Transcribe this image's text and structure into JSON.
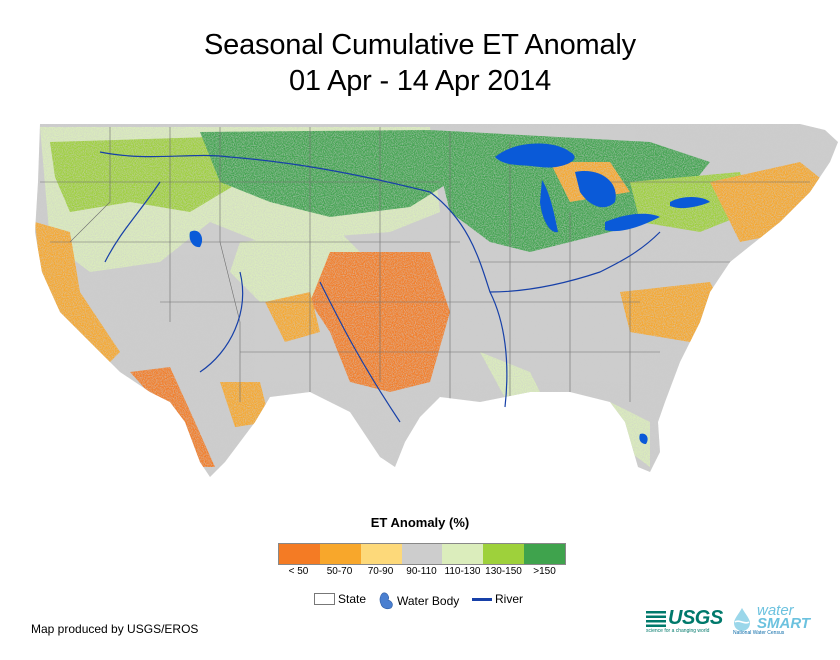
{
  "title_line1": "Seasonal Cumulative ET Anomaly",
  "title_line2": "01 Apr - 14 Apr 2014",
  "legend": {
    "title": "ET Anomaly (%)",
    "classes": [
      {
        "label": "< 50",
        "color": "#f47b24"
      },
      {
        "label": "50-70",
        "color": "#f8a72b"
      },
      {
        "label": "70-90",
        "color": "#fdd97a"
      },
      {
        "label": "90-110",
        "color": "#cdcdcd"
      },
      {
        "label": "110-130",
        "color": "#dbedbc"
      },
      {
        "label": "130-150",
        "color": "#9ed13b"
      },
      {
        "label": ">150",
        "color": "#3fa34d"
      }
    ]
  },
  "map_keys": {
    "state": "State",
    "water_body": "Water Body",
    "river": "River"
  },
  "credit": "Map produced by USGS/EROS",
  "logos": {
    "usgs": "USGS",
    "usgs_tagline": "science for a changing world",
    "watersmart_top": "water",
    "watersmart_bottom": "SMART",
    "watersmart_sub": "National Water Census"
  },
  "colors": {
    "water": "#0a5ad8",
    "river": "#1740a8",
    "usgs_green": "#00796b"
  }
}
